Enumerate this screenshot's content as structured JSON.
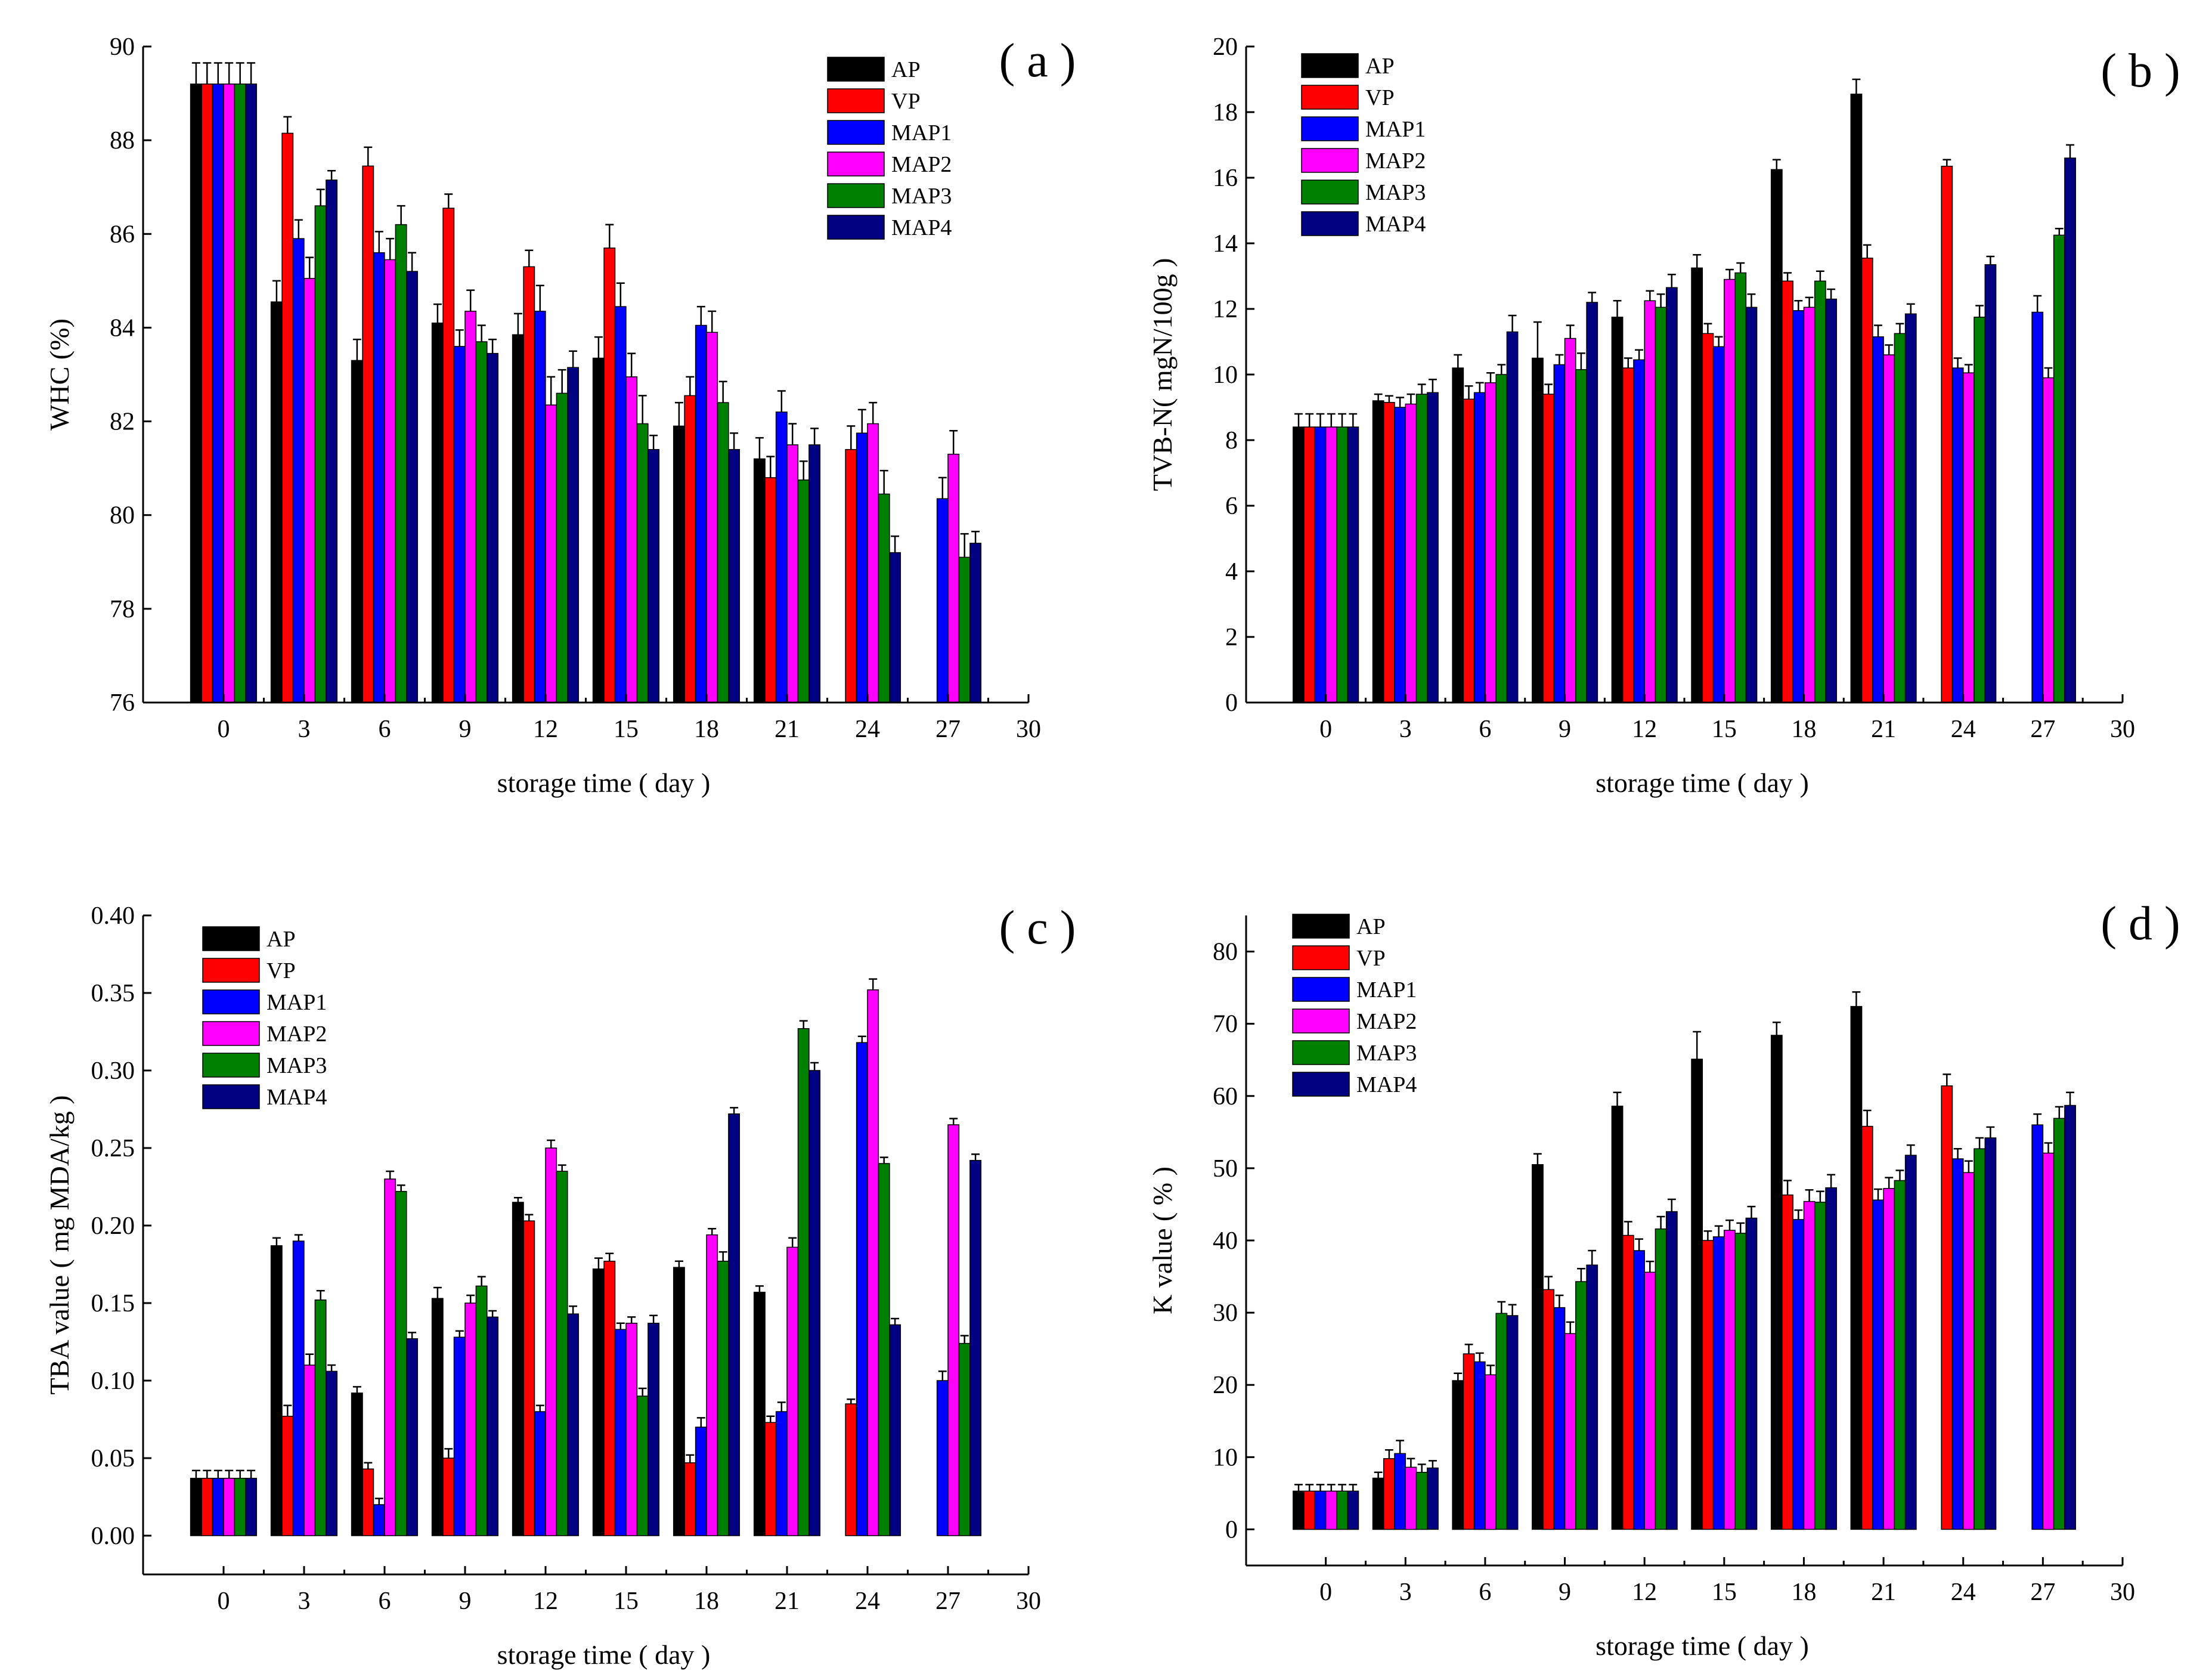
{
  "figure": {
    "xlabel": "storage time ( day )",
    "series": [
      {
        "name": "AP",
        "color": "#000000"
      },
      {
        "name": "VP",
        "color": "#ff0000"
      },
      {
        "name": "MAP1",
        "color": "#0000ff"
      },
      {
        "name": "MAP2",
        "color": "#ff00ff"
      },
      {
        "name": "MAP3",
        "color": "#008000"
      },
      {
        "name": "MAP4",
        "color": "#000080"
      }
    ]
  },
  "chart_data": [
    {
      "type": "bar",
      "panel": "( a )",
      "ylabel": "WHC (%)",
      "xlabel": "storage time ( day )",
      "categories": [
        0,
        3,
        6,
        9,
        12,
        15,
        18,
        21,
        24,
        27
      ],
      "xticks": [
        "0",
        "3",
        "6",
        "9",
        "12",
        "15",
        "18",
        "21",
        "24",
        "27",
        "30"
      ],
      "ylim": [
        76,
        90
      ],
      "yticks": [
        "76",
        "78",
        "80",
        "82",
        "84",
        "86",
        "88",
        "90"
      ],
      "legend_position": "top-right",
      "series": [
        {
          "name": "AP",
          "color": "#000000",
          "values": [
            89.2,
            84.55,
            83.3,
            84.1,
            83.85,
            83.35,
            81.9,
            81.2,
            null,
            null
          ],
          "errors": [
            0.45,
            0.45,
            0.45,
            0.4,
            0.45,
            0.45,
            0.5,
            0.45,
            0,
            0
          ]
        },
        {
          "name": "VP",
          "color": "#ff0000",
          "values": [
            89.2,
            88.15,
            87.45,
            86.55,
            85.3,
            85.7,
            82.55,
            80.8,
            81.4,
            null
          ],
          "errors": [
            0.45,
            0.35,
            0.4,
            0.3,
            0.35,
            0.5,
            0.4,
            0.45,
            0.5,
            0
          ]
        },
        {
          "name": "MAP1",
          "color": "#0000ff",
          "values": [
            89.2,
            85.9,
            85.6,
            83.6,
            84.35,
            84.45,
            84.05,
            82.2,
            81.75,
            80.35
          ],
          "errors": [
            0.45,
            0.4,
            0.45,
            0.35,
            0.55,
            0.5,
            0.4,
            0.45,
            0.5,
            0.45
          ]
        },
        {
          "name": "MAP2",
          "color": "#ff00ff",
          "values": [
            89.2,
            85.05,
            85.45,
            84.35,
            82.35,
            82.95,
            83.9,
            81.5,
            81.95,
            81.3
          ],
          "errors": [
            0.45,
            0.45,
            0.45,
            0.45,
            0.6,
            0.5,
            0.45,
            0.45,
            0.45,
            0.5
          ]
        },
        {
          "name": "MAP3",
          "color": "#008000",
          "values": [
            89.2,
            86.6,
            86.2,
            83.7,
            82.6,
            81.95,
            82.4,
            80.75,
            80.45,
            79.1
          ],
          "errors": [
            0.45,
            0.35,
            0.4,
            0.35,
            0.5,
            0.6,
            0.45,
            0.4,
            0.5,
            0.5
          ]
        },
        {
          "name": "MAP4",
          "color": "#000080",
          "values": [
            89.2,
            87.15,
            85.2,
            83.45,
            83.15,
            81.4,
            81.4,
            81.5,
            79.2,
            79.4
          ],
          "errors": [
            0.45,
            0.2,
            0.4,
            0.3,
            0.35,
            0.3,
            0.35,
            0.35,
            0.35,
            0.25
          ]
        }
      ]
    },
    {
      "type": "bar",
      "panel": "( b )",
      "ylabel": "TVB-N( mgN/100g )",
      "xlabel": "storage time ( day )",
      "categories": [
        0,
        3,
        6,
        9,
        12,
        15,
        18,
        21,
        24,
        27
      ],
      "xticks": [
        "0",
        "3",
        "6",
        "9",
        "12",
        "15",
        "18",
        "21",
        "24",
        "27",
        "30"
      ],
      "ylim": [
        0,
        20
      ],
      "yticks": [
        "0",
        "2",
        "4",
        "6",
        "8",
        "10",
        "12",
        "14",
        "16",
        "18",
        "20"
      ],
      "legend_position": "top-left",
      "series": [
        {
          "name": "AP",
          "color": "#000000",
          "values": [
            8.4,
            9.2,
            10.2,
            10.5,
            11.75,
            13.25,
            16.25,
            18.55,
            null,
            null
          ],
          "errors": [
            0.4,
            0.2,
            0.4,
            1.1,
            0.5,
            0.4,
            0.3,
            0.45,
            0,
            0
          ]
        },
        {
          "name": "VP",
          "color": "#ff0000",
          "values": [
            8.4,
            9.15,
            9.25,
            9.4,
            10.2,
            11.25,
            12.85,
            13.55,
            16.35,
            null
          ],
          "errors": [
            0.4,
            0.2,
            0.4,
            0.3,
            0.3,
            0.3,
            0.25,
            0.4,
            0.2,
            0
          ]
        },
        {
          "name": "MAP1",
          "color": "#0000ff",
          "values": [
            8.4,
            9.0,
            9.45,
            10.3,
            10.45,
            10.85,
            11.95,
            11.15,
            10.2,
            11.9
          ],
          "errors": [
            0.4,
            0.3,
            0.3,
            0.3,
            0.3,
            0.3,
            0.3,
            0.35,
            0.3,
            0.5
          ]
        },
        {
          "name": "MAP2",
          "color": "#ff00ff",
          "values": [
            8.4,
            9.1,
            9.75,
            11.1,
            12.25,
            12.9,
            12.05,
            10.6,
            10.05,
            9.9
          ],
          "errors": [
            0.4,
            0.3,
            0.3,
            0.4,
            0.3,
            0.3,
            0.3,
            0.3,
            0.25,
            0.3
          ]
        },
        {
          "name": "MAP3",
          "color": "#008000",
          "values": [
            8.4,
            9.4,
            10.0,
            10.15,
            12.05,
            13.1,
            12.85,
            11.25,
            11.75,
            14.25
          ],
          "errors": [
            0.4,
            0.3,
            0.3,
            0.5,
            0.4,
            0.3,
            0.3,
            0.3,
            0.35,
            0.2
          ]
        },
        {
          "name": "MAP4",
          "color": "#000080",
          "values": [
            8.4,
            9.45,
            11.3,
            12.2,
            12.65,
            12.05,
            12.3,
            11.85,
            13.35,
            16.6
          ],
          "errors": [
            0.4,
            0.4,
            0.5,
            0.3,
            0.4,
            0.4,
            0.3,
            0.3,
            0.25,
            0.4
          ]
        }
      ]
    },
    {
      "type": "bar",
      "panel": "( c )",
      "ylabel": "TBA value ( mg MDA/kg )",
      "xlabel": "storage time ( day )",
      "categories": [
        0,
        3,
        6,
        9,
        12,
        15,
        18,
        21,
        24,
        27
      ],
      "xticks": [
        "0",
        "3",
        "6",
        "9",
        "12",
        "15",
        "18",
        "21",
        "24",
        "27",
        "30"
      ],
      "ylim": [
        -0.025,
        0.4
      ],
      "yticks": [
        "0.00",
        "0.05",
        "0.10",
        "0.15",
        "0.20",
        "0.25",
        "0.30",
        "0.35",
        "0.40"
      ],
      "legend_position": "top-left",
      "series": [
        {
          "name": "AP",
          "color": "#000000",
          "values": [
            0.037,
            0.187,
            0.092,
            0.153,
            0.215,
            0.172,
            0.173,
            0.157,
            null,
            null
          ],
          "errors": [
            0.005,
            0.005,
            0.004,
            0.007,
            0.003,
            0.007,
            0.004,
            0.004,
            0,
            0
          ]
        },
        {
          "name": "VP",
          "color": "#ff0000",
          "values": [
            0.037,
            0.077,
            0.043,
            0.05,
            0.203,
            0.177,
            0.047,
            0.073,
            0.085,
            null
          ],
          "errors": [
            0.005,
            0.007,
            0.004,
            0.006,
            0.004,
            0.005,
            0.005,
            0.004,
            0.003,
            0
          ]
        },
        {
          "name": "MAP1",
          "color": "#0000ff",
          "values": [
            0.037,
            0.19,
            0.02,
            0.128,
            0.08,
            0.133,
            0.07,
            0.08,
            0.318,
            0.1
          ],
          "errors": [
            0.005,
            0.004,
            0.004,
            0.004,
            0.004,
            0.004,
            0.006,
            0.006,
            0.004,
            0.006
          ]
        },
        {
          "name": "MAP2",
          "color": "#ff00ff",
          "values": [
            0.037,
            0.11,
            0.23,
            0.15,
            0.25,
            0.137,
            0.194,
            0.186,
            0.352,
            0.265
          ],
          "errors": [
            0.005,
            0.007,
            0.005,
            0.005,
            0.005,
            0.004,
            0.004,
            0.006,
            0.007,
            0.004
          ]
        },
        {
          "name": "MAP3",
          "color": "#008000",
          "values": [
            0.037,
            0.152,
            0.222,
            0.161,
            0.235,
            0.09,
            0.177,
            0.327,
            0.24,
            0.124
          ],
          "errors": [
            0.005,
            0.006,
            0.004,
            0.006,
            0.004,
            0.005,
            0.006,
            0.005,
            0.004,
            0.005
          ]
        },
        {
          "name": "MAP4",
          "color": "#000080",
          "values": [
            0.037,
            0.106,
            0.127,
            0.141,
            0.143,
            0.137,
            0.272,
            0.3,
            0.136,
            0.242
          ],
          "errors": [
            0.005,
            0.004,
            0.004,
            0.004,
            0.005,
            0.005,
            0.004,
            0.005,
            0.004,
            0.004
          ]
        }
      ]
    },
    {
      "type": "bar",
      "panel": "( d )",
      "ylabel": "K value ( % )",
      "xlabel": "storage time ( day )",
      "categories": [
        0,
        3,
        6,
        9,
        12,
        15,
        18,
        21,
        24,
        27
      ],
      "xticks": [
        "0",
        "3",
        "6",
        "9",
        "12",
        "15",
        "18",
        "21",
        "24",
        "27",
        "30"
      ],
      "ylim": [
        -5,
        85
      ],
      "yticks": [
        "0",
        "10",
        "20",
        "30",
        "40",
        "50",
        "60",
        "70",
        "80"
      ],
      "legend_position": "top-left",
      "series": [
        {
          "name": "AP",
          "color": "#000000",
          "values": [
            5.3,
            7.1,
            20.6,
            50.5,
            58.6,
            65.1,
            68.4,
            72.4,
            null,
            null
          ],
          "errors": [
            0.9,
            0.8,
            1.0,
            1.5,
            1.9,
            3.8,
            1.8,
            2.0,
            0,
            0
          ]
        },
        {
          "name": "VP",
          "color": "#ff0000",
          "values": [
            5.3,
            9.8,
            24.3,
            33.2,
            40.7,
            40.0,
            46.3,
            55.8,
            61.4,
            null
          ],
          "errors": [
            0.9,
            1.2,
            1.3,
            1.8,
            1.9,
            1.3,
            2.0,
            2.2,
            1.6,
            0
          ]
        },
        {
          "name": "MAP1",
          "color": "#0000ff",
          "values": [
            5.3,
            10.5,
            23.2,
            30.7,
            38.6,
            40.5,
            42.9,
            45.6,
            51.3,
            56.0
          ],
          "errors": [
            0.9,
            1.8,
            1.2,
            1.7,
            1.6,
            1.5,
            1.3,
            1.5,
            1.4,
            1.5
          ]
        },
        {
          "name": "MAP2",
          "color": "#ff00ff",
          "values": [
            5.3,
            8.6,
            21.4,
            27.1,
            35.6,
            41.4,
            45.4,
            47.2,
            49.4,
            52.1
          ],
          "errors": [
            0.9,
            1.2,
            1.3,
            1.6,
            1.5,
            1.4,
            1.6,
            1.5,
            1.6,
            1.4
          ]
        },
        {
          "name": "MAP3",
          "color": "#008000",
          "values": [
            5.3,
            7.9,
            29.9,
            34.3,
            41.6,
            41.0,
            45.3,
            48.3,
            52.7,
            56.9
          ],
          "errors": [
            0.9,
            1.1,
            1.6,
            1.8,
            1.7,
            1.4,
            1.5,
            1.4,
            1.5,
            1.6
          ]
        },
        {
          "name": "MAP4",
          "color": "#000080",
          "values": [
            5.3,
            8.5,
            29.6,
            36.6,
            44.0,
            43.1,
            47.3,
            51.8,
            54.2,
            58.7
          ],
          "errors": [
            0.9,
            1.0,
            1.5,
            2.0,
            1.7,
            1.6,
            1.8,
            1.4,
            1.5,
            1.8
          ]
        }
      ]
    }
  ]
}
